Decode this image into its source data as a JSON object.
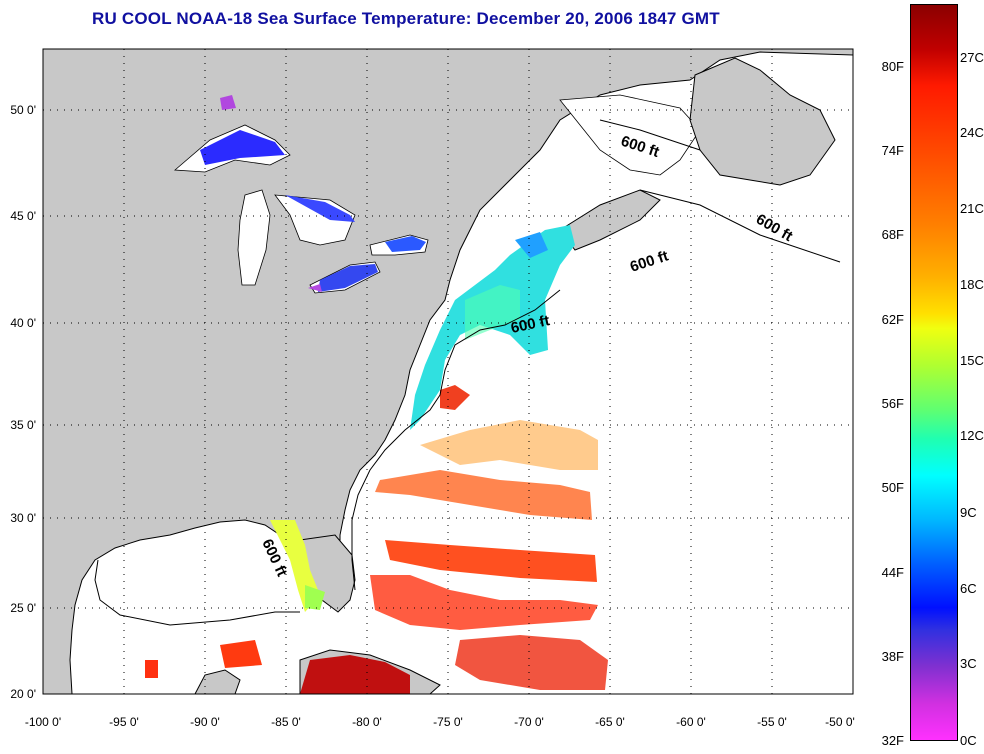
{
  "title": "RU COOL  NOAA-18  Sea Surface Temperature:  December 20, 2006 1847 GMT",
  "map": {
    "lon_range": [
      -100,
      -50
    ],
    "lat_range": [
      20,
      52.5
    ],
    "y_ticks": [
      "50 0'",
      "45 0'",
      "40 0'",
      "35 0'",
      "30 0'",
      "25 0'",
      "20 0'"
    ],
    "x_ticks": [
      "-100 0'",
      "-95 0'",
      "-90 0'",
      "-85 0'",
      "-80 0'",
      "-75 0'",
      "-70 0'",
      "-65 0'",
      "-60 0'",
      "-55 0'",
      "-50 0'"
    ],
    "contour_labels": [
      "600 ft",
      "600 ft",
      "600 ft",
      "600 ft",
      "600 ft"
    ],
    "land_color": "#c8c8c8",
    "ocean_color": "#ffffff"
  },
  "colorbar": {
    "fahrenheit": [
      "80F",
      "74F",
      "68F",
      "62F",
      "56F",
      "50F",
      "44F",
      "38F",
      "32F"
    ],
    "celsius": [
      "27C",
      "24C",
      "21C",
      "18C",
      "15C",
      "12C",
      "9C",
      "6C",
      "3C",
      "0C"
    ]
  }
}
